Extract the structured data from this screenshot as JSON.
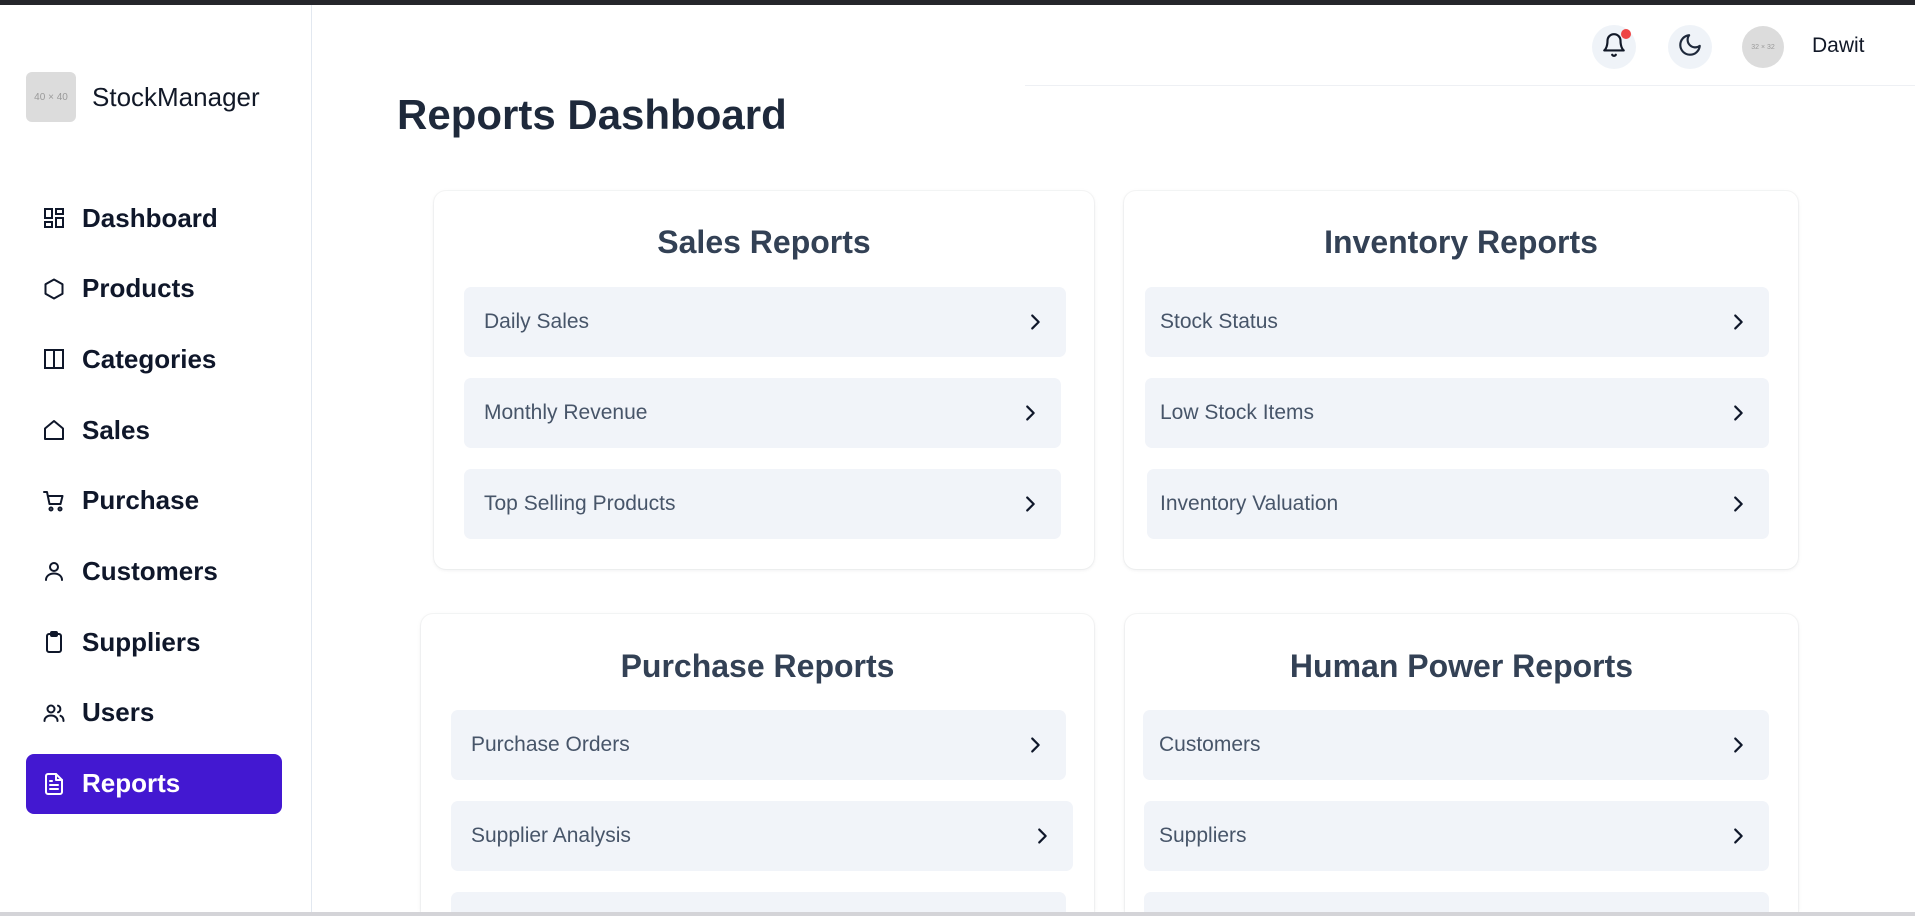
{
  "brand": {
    "logo_text": "40 × 40",
    "name": "StockManager"
  },
  "nav": [
    {
      "key": "dashboard",
      "label": "Dashboard",
      "icon": "grid-icon",
      "active": false
    },
    {
      "key": "products",
      "label": "Products",
      "icon": "hexagon-icon",
      "active": false
    },
    {
      "key": "categories",
      "label": "Categories",
      "icon": "columns-icon",
      "active": false
    },
    {
      "key": "sales",
      "label": "Sales",
      "icon": "home-icon",
      "active": false
    },
    {
      "key": "purchase",
      "label": "Purchase",
      "icon": "cart-icon",
      "active": false
    },
    {
      "key": "customers",
      "label": "Customers",
      "icon": "user-icon",
      "active": false
    },
    {
      "key": "suppliers",
      "label": "Suppliers",
      "icon": "clipboard-icon",
      "active": false
    },
    {
      "key": "users",
      "label": "Users",
      "icon": "users-icon",
      "active": false
    },
    {
      "key": "reports",
      "label": "Reports",
      "icon": "file-text-icon",
      "active": true
    }
  ],
  "header": {
    "avatar_text": "32 × 32",
    "username": "Dawit",
    "notification_dot": true,
    "colors": {
      "notification": "#ef4444"
    }
  },
  "page": {
    "title": "Reports Dashboard"
  },
  "cards": [
    {
      "key": "sales",
      "title": "Sales Reports",
      "items": [
        "Daily Sales",
        "Monthly Revenue",
        "Top Selling Products"
      ]
    },
    {
      "key": "inventory",
      "title": "Inventory Reports",
      "items": [
        "Stock Status",
        "Low Stock Items",
        "Inventory Valuation"
      ]
    },
    {
      "key": "purchase",
      "title": "Purchase Reports",
      "items": [
        "Purchase Orders",
        "Supplier Analysis"
      ]
    },
    {
      "key": "human-power",
      "title": "Human Power Reports",
      "items": [
        "Customers",
        "Suppliers"
      ]
    }
  ],
  "colors": {
    "accent": "#4318d1",
    "row_bg": "#f1f4f9"
  }
}
